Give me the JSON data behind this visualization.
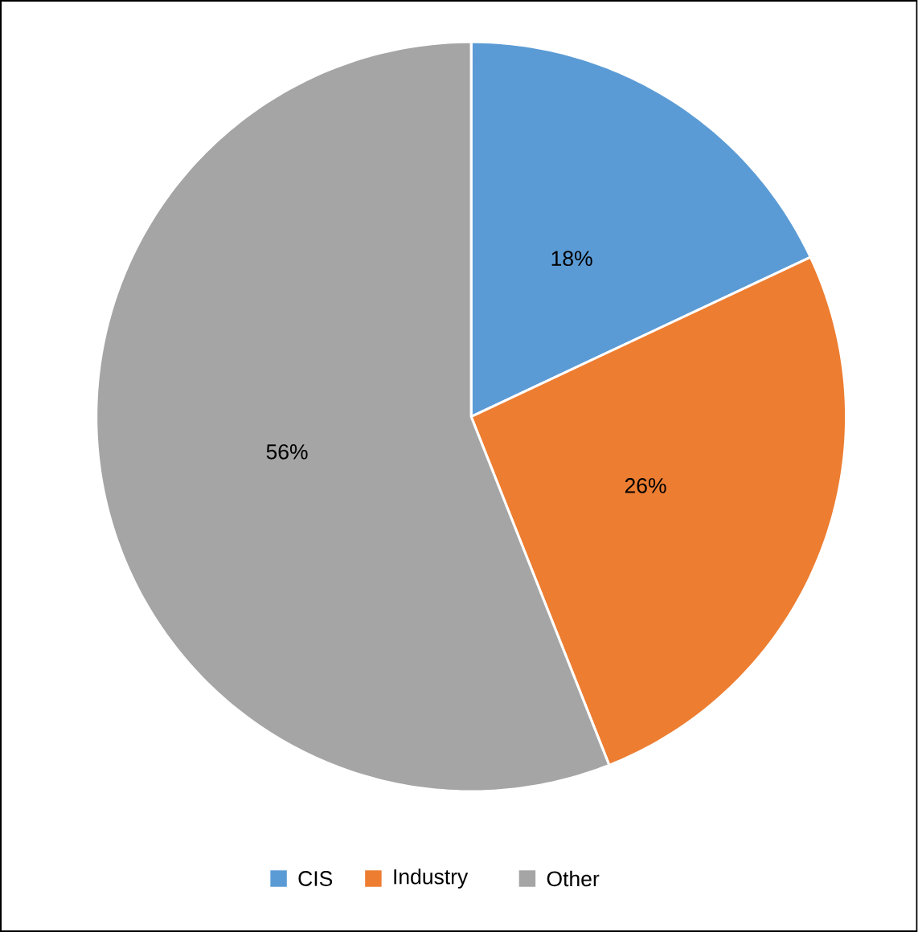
{
  "chart_data": {
    "type": "pie",
    "categories": [
      "CIS",
      "Industry",
      "Other"
    ],
    "values": [
      18,
      26,
      56
    ],
    "colors": [
      "#5b9bd5",
      "#ed7d31",
      "#a5a5a5"
    ],
    "value_labels": [
      "18%",
      "26%",
      "56%"
    ],
    "legend": "bottom"
  }
}
